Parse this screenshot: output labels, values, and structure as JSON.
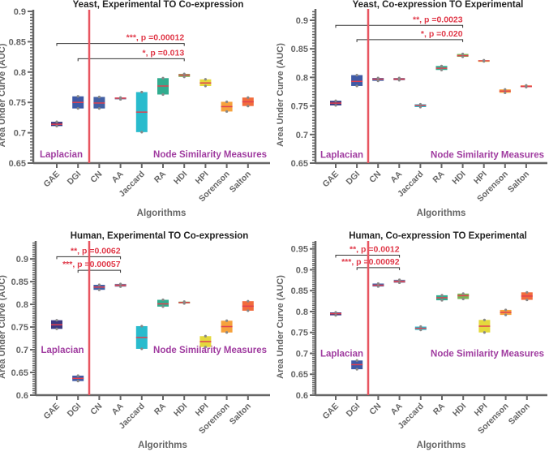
{
  "chart_data": [
    {
      "type": "box",
      "title": "Yeast, Experimental TO Co-expression",
      "xlabel": "Algorithms",
      "ylabel": "Area Under Curve (AUC)",
      "ylim": [
        0.65,
        0.9
      ],
      "yticks": [
        "0.65",
        "0.7",
        "0.75",
        "0.8",
        "0.85",
        "0.9"
      ],
      "categories": [
        "GAE",
        "DGI",
        "CN",
        "AA",
        "Jaccard",
        "RA",
        "HDI",
        "HPI",
        "Sorenson",
        "Salton"
      ],
      "boxes": [
        {
          "q1": 0.711,
          "median": 0.714,
          "q3": 0.718
        },
        {
          "q1": 0.74,
          "median": 0.75,
          "q3": 0.76
        },
        {
          "q1": 0.74,
          "median": 0.749,
          "q3": 0.759
        },
        {
          "q1": 0.755,
          "median": 0.757,
          "q3": 0.758
        },
        {
          "q1": 0.701,
          "median": 0.734,
          "q3": 0.767
        },
        {
          "q1": 0.763,
          "median": 0.777,
          "q3": 0.79
        },
        {
          "q1": 0.792,
          "median": 0.795,
          "q3": 0.797
        },
        {
          "q1": 0.777,
          "median": 0.782,
          "q3": 0.788
        },
        {
          "q1": 0.735,
          "median": 0.743,
          "q3": 0.751
        },
        {
          "q1": 0.744,
          "median": 0.751,
          "q3": 0.758
        }
      ],
      "group_labels": {
        "left": "Laplacian",
        "right": "Node Similarity Measures",
        "y": 0.665
      },
      "brackets": [
        {
          "from": "GAE",
          "to": "HDI",
          "y": 0.847,
          "label": "***, p =0.00012"
        },
        {
          "from": "DGI",
          "to": "HDI",
          "y": 0.822,
          "label": "*, p =0.013"
        }
      ]
    },
    {
      "type": "box",
      "title": "Yeast, Co-expression TO Experimental",
      "xlabel": "Algorithms",
      "ylabel": "Area Under Curve (AUC)",
      "ylim": [
        0.65,
        0.917
      ],
      "yticks": [
        "0.65",
        "0.7",
        "0.75",
        "0.8",
        "0.85",
        "0.9"
      ],
      "categories": [
        "GAE",
        "DGI",
        "CN",
        "AA",
        "Jaccard",
        "RA",
        "HDI",
        "HPI",
        "Sorenson",
        "Salton"
      ],
      "boxes": [
        {
          "q1": 0.751,
          "median": 0.755,
          "q3": 0.759
        },
        {
          "q1": 0.785,
          "median": 0.793,
          "q3": 0.804
        },
        {
          "q1": 0.794,
          "median": 0.797,
          "q3": 0.799
        },
        {
          "q1": 0.795,
          "median": 0.797,
          "q3": 0.799
        },
        {
          "q1": 0.748,
          "median": 0.751,
          "q3": 0.753
        },
        {
          "q1": 0.813,
          "median": 0.816,
          "q3": 0.82
        },
        {
          "q1": 0.836,
          "median": 0.838,
          "q3": 0.841
        },
        {
          "q1": 0.828,
          "median": 0.829,
          "q3": 0.83
        },
        {
          "q1": 0.773,
          "median": 0.776,
          "q3": 0.779
        },
        {
          "q1": 0.783,
          "median": 0.784,
          "q3": 0.786
        }
      ],
      "group_labels": {
        "left": "Laplacian",
        "right": "Node Similarity Measures",
        "y": 0.665
      },
      "brackets": [
        {
          "from": "GAE",
          "to": "HDI",
          "y": 0.891,
          "label": "**, p =0.0023"
        },
        {
          "from": "DGI",
          "to": "HDI",
          "y": 0.866,
          "label": "*, p =0.020"
        }
      ]
    },
    {
      "type": "box",
      "title": "Human,  Experimental TO Co-expression",
      "xlabel": "Algorithms",
      "ylabel": "Area Under Curve (AUC)",
      "ylim": [
        0.6,
        0.936
      ],
      "yticks": [
        "0.6",
        "0.65",
        "0.7",
        "0.75",
        "0.8",
        "0.85",
        "0.9"
      ],
      "categories": [
        "GAE",
        "DGI",
        "CN",
        "AA",
        "Jaccard",
        "RA",
        "HDI",
        "HPI",
        "Sorenson",
        "Salton"
      ],
      "boxes": [
        {
          "q1": 0.746,
          "median": 0.755,
          "q3": 0.765
        },
        {
          "q1": 0.631,
          "median": 0.637,
          "q3": 0.643
        },
        {
          "q1": 0.832,
          "median": 0.838,
          "q3": 0.843
        },
        {
          "q1": 0.839,
          "median": 0.842,
          "q3": 0.845
        },
        {
          "q1": 0.702,
          "median": 0.727,
          "q3": 0.752
        },
        {
          "q1": 0.795,
          "median": 0.801,
          "q3": 0.81
        },
        {
          "q1": 0.802,
          "median": 0.804,
          "q3": 0.806
        },
        {
          "q1": 0.706,
          "median": 0.718,
          "q3": 0.73
        },
        {
          "q1": 0.738,
          "median": 0.751,
          "q3": 0.764
        },
        {
          "q1": 0.786,
          "median": 0.796,
          "q3": 0.807
        }
      ],
      "group_labels": {
        "left": "Laplacian",
        "right": "Node Similarity Measures",
        "y": 0.7
      },
      "brackets": [
        {
          "from": "GAE",
          "to": "AA",
          "y": 0.905,
          "label": "**, p =0.0062"
        },
        {
          "from": "DGI",
          "to": "AA",
          "y": 0.875,
          "label": "***, p =0.00057"
        }
      ]
    },
    {
      "type": "box",
      "title": "Human, Co-expression TO Experimental",
      "xlabel": "Algorithms",
      "ylabel": "Area Under Curve (AUC)",
      "ylim": [
        0.6,
        0.965
      ],
      "yticks": [
        "0.6",
        "0.65",
        "0.7",
        "0.75",
        "0.8",
        "0.85",
        "0.9",
        "0.95"
      ],
      "categories": [
        "GAE",
        "DGI",
        "CN",
        "AA",
        "Jaccard",
        "RA",
        "HDI",
        "HPI",
        "Sorenson",
        "Salton"
      ],
      "boxes": [
        {
          "q1": 0.791,
          "median": 0.795,
          "q3": 0.798
        },
        {
          "q1": 0.662,
          "median": 0.673,
          "q3": 0.683
        },
        {
          "q1": 0.86,
          "median": 0.863,
          "q3": 0.867
        },
        {
          "q1": 0.869,
          "median": 0.872,
          "q3": 0.876
        },
        {
          "q1": 0.756,
          "median": 0.76,
          "q3": 0.764
        },
        {
          "q1": 0.827,
          "median": 0.833,
          "q3": 0.839
        },
        {
          "q1": 0.83,
          "median": 0.838,
          "q3": 0.843
        },
        {
          "q1": 0.75,
          "median": 0.765,
          "q3": 0.78
        },
        {
          "q1": 0.792,
          "median": 0.798,
          "q3": 0.804
        },
        {
          "q1": 0.828,
          "median": 0.837,
          "q3": 0.846
        }
      ],
      "group_labels": {
        "left": "Laplacian",
        "right": "Node Similarity Measures",
        "y": 0.7
      },
      "brackets": [
        {
          "from": "GAE",
          "to": "AA",
          "y": 0.935,
          "label": "**, p =0.0012"
        },
        {
          "from": "DGI",
          "to": "AA",
          "y": 0.905,
          "label": "***, p =0.00092"
        }
      ]
    }
  ],
  "colors": {
    "boxes": [
      "#2b2877",
      "#2f4c9e",
      "#33529c",
      "#6a6692",
      "#17b5c9",
      "#1fa585",
      "#6fae47",
      "#e2d62c",
      "#f59a2c",
      "#f0602c"
    ],
    "median": "#e04050",
    "divider": "#e85560",
    "annotation": "#e03848",
    "group_label": "#a03ca0",
    "axis": "#666666"
  }
}
